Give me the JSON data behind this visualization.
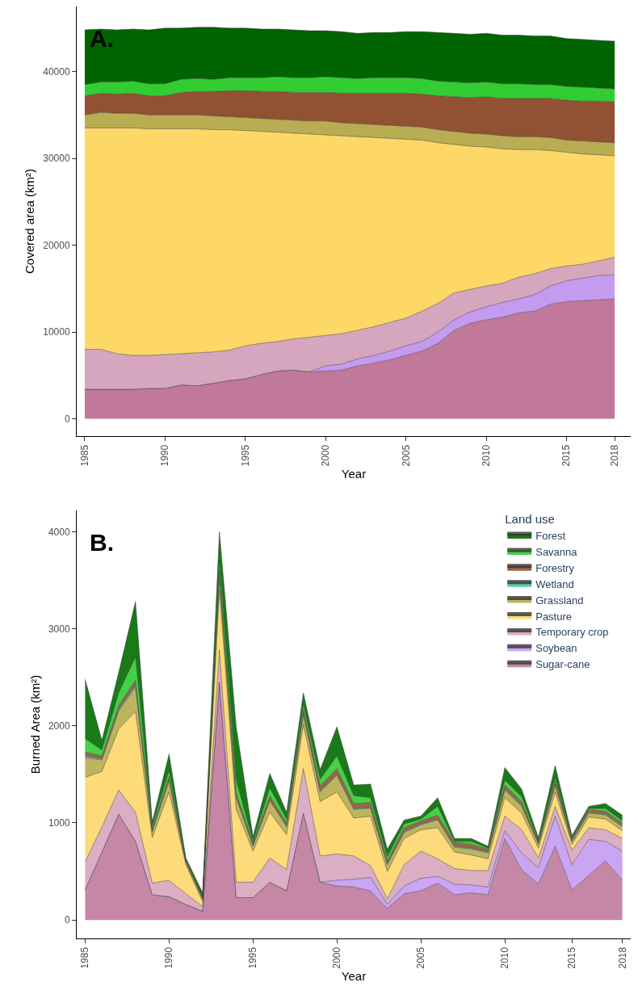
{
  "chart_data": [
    {
      "type": "area",
      "title": "A.",
      "xlabel": "Year",
      "ylabel": "Covered area (km²)",
      "stacked": true,
      "x": [
        1985,
        1986,
        1987,
        1988,
        1989,
        1990,
        1991,
        1992,
        1993,
        1994,
        1995,
        1996,
        1997,
        1998,
        1999,
        2000,
        2001,
        2002,
        2003,
        2004,
        2005,
        2006,
        2007,
        2008,
        2009,
        2010,
        2011,
        2012,
        2013,
        2014,
        2015,
        2016,
        2017,
        2018
      ],
      "xlim": [
        1984.5,
        2019
      ],
      "xticks": [
        1985,
        1990,
        1995,
        2000,
        2005,
        2010,
        2015,
        2018
      ],
      "ylim": [
        -2000,
        47500
      ],
      "yticks": [
        0,
        10000,
        20000,
        30000,
        40000
      ],
      "series": [
        {
          "color": "#c0789b",
          "values": [
            3400,
            3400,
            3400,
            3400,
            3500,
            3500,
            3900,
            3800,
            4100,
            4400,
            4600,
            5100,
            5500,
            5600,
            5400,
            5500,
            5600,
            6100,
            6400,
            6800,
            7300,
            7800,
            8700,
            10200,
            11000,
            11400,
            11700,
            12200,
            12400,
            13200,
            13500,
            13600,
            13700,
            13800
          ]
        },
        {
          "color": "#c39bef",
          "values": [
            0,
            0,
            0,
            0,
            0,
            0,
            0,
            0,
            0,
            0,
            0,
            0,
            0,
            0,
            0,
            600,
            700,
            800,
            900,
            1000,
            1100,
            1100,
            1300,
            1200,
            1300,
            1500,
            1700,
            1600,
            1900,
            2100,
            2400,
            2600,
            2800,
            2800
          ]
        },
        {
          "color": "#d5a6bd",
          "values": [
            4600,
            4600,
            4100,
            3900,
            3800,
            3900,
            3600,
            3800,
            3600,
            3500,
            3800,
            3600,
            3400,
            3600,
            4000,
            3500,
            3500,
            3300,
            3300,
            3300,
            3200,
            3500,
            3300,
            3100,
            2600,
            2400,
            2200,
            2500,
            2400,
            2000,
            1700,
            1600,
            1700,
            2000
          ]
        },
        {
          "color": "#fdd866",
          "values": [
            25500,
            25500,
            26000,
            26200,
            26100,
            26000,
            25900,
            25800,
            25600,
            25400,
            24800,
            24400,
            24100,
            23700,
            23400,
            23100,
            22800,
            22300,
            21800,
            21200,
            20600,
            19700,
            18500,
            17100,
            16500,
            16000,
            15500,
            14700,
            14300,
            13600,
            13100,
            12700,
            12200,
            11700
          ]
        },
        {
          "color": "#b8ad52",
          "values": [
            1500,
            1800,
            1700,
            1700,
            1600,
            1600,
            1600,
            1600,
            1600,
            1500,
            1500,
            1500,
            1500,
            1500,
            1500,
            1600,
            1500,
            1500,
            1500,
            1500,
            1500,
            1500,
            1500,
            1500,
            1500,
            1500,
            1500,
            1500,
            1500,
            1500,
            1400,
            1500,
            1500,
            1500
          ]
        },
        {
          "color": "#935133",
          "values": [
            2200,
            2200,
            2200,
            2300,
            2200,
            2200,
            2600,
            2700,
            2800,
            3000,
            3100,
            3100,
            3200,
            3200,
            3300,
            3300,
            3400,
            3500,
            3600,
            3700,
            3800,
            3800,
            3900,
            4000,
            4100,
            4300,
            4300,
            4400,
            4400,
            4500,
            4600,
            4600,
            4700,
            4700
          ]
        },
        {
          "color": "#32cd32",
          "values": [
            1300,
            1300,
            1400,
            1400,
            1400,
            1400,
            1500,
            1500,
            1400,
            1500,
            1500,
            1600,
            1700,
            1700,
            1700,
            1800,
            1800,
            1700,
            1800,
            1800,
            1800,
            1800,
            1700,
            1700,
            1700,
            1700,
            1700,
            1700,
            1600,
            1600,
            1600,
            1600,
            1500,
            1500
          ]
        },
        {
          "color": "#006400",
          "values": [
            6300,
            6100,
            6000,
            6000,
            6200,
            6400,
            5900,
            5900,
            6000,
            5700,
            5700,
            5600,
            5500,
            5500,
            5400,
            5300,
            5300,
            5200,
            5200,
            5200,
            5300,
            5400,
            5600,
            5600,
            5600,
            5600,
            5600,
            5600,
            5600,
            5600,
            5500,
            5500,
            5500,
            5500
          ]
        }
      ]
    },
    {
      "type": "area",
      "title": "B.",
      "xlabel": "Year",
      "ylabel": "Burned Area (km²)",
      "legend_title": "Land use",
      "stacked": true,
      "legend": "top right",
      "categories": [
        "1985",
        null,
        null,
        null,
        null,
        "1990",
        null,
        null,
        null,
        null,
        "1995",
        null,
        null,
        null,
        null,
        "2000",
        null,
        null,
        null,
        null,
        "2005",
        null,
        null,
        null,
        null,
        "2010",
        null,
        null,
        null,
        "2015",
        null,
        null,
        "2018"
      ],
      "ylim": [
        -190,
        4220
      ],
      "yticks": [
        0,
        1000,
        2000,
        3000,
        4000
      ],
      "series": [
        {
          "name": "Sugar-cane",
          "color": "#c687a7",
          "values": [
            310,
            700,
            1090,
            810,
            260,
            240,
            160,
            90,
            2450,
            230,
            230,
            390,
            300,
            1100,
            390,
            350,
            340,
            300,
            120,
            270,
            300,
            380,
            260,
            280,
            260,
            840,
            520,
            370,
            760,
            310,
            460,
            610,
            410
          ]
        },
        {
          "name": "Soybean",
          "color": "#c9a5f2",
          "values": [
            0,
            0,
            0,
            0,
            0,
            0,
            0,
            0,
            0,
            0,
            0,
            0,
            0,
            0,
            0,
            60,
            80,
            140,
            40,
            80,
            130,
            70,
            110,
            80,
            80,
            80,
            170,
            170,
            310,
            260,
            370,
            200,
            300
          ]
        },
        {
          "name": "Temporary crop",
          "color": "#dbaec3",
          "values": [
            290,
            260,
            250,
            300,
            120,
            170,
            110,
            50,
            330,
            160,
            160,
            250,
            220,
            460,
            270,
            270,
            240,
            120,
            60,
            220,
            280,
            180,
            160,
            150,
            170,
            150,
            240,
            100,
            100,
            150,
            120,
            120,
            130
          ]
        },
        {
          "name": "Pasture",
          "color": "#fddb7a",
          "values": [
            870,
            570,
            630,
            1040,
            470,
            910,
            300,
            50,
            620,
            750,
            320,
            470,
            360,
            450,
            560,
            640,
            390,
            510,
            280,
            270,
            220,
            320,
            170,
            160,
            120,
            190,
            170,
            100,
            150,
            60,
            110,
            110,
            80
          ]
        },
        {
          "name": "Grassland",
          "color": "#bdb55e",
          "values": [
            200,
            120,
            180,
            250,
            60,
            110,
            30,
            30,
            150,
            120,
            50,
            120,
            80,
            110,
            100,
            170,
            90,
            80,
            70,
            60,
            50,
            80,
            50,
            60,
            60,
            80,
            70,
            40,
            70,
            30,
            40,
            40,
            40
          ]
        },
        {
          "name": "Wetland",
          "color": "#5bc8ad",
          "values": [
            20,
            10,
            20,
            20,
            10,
            20,
            0,
            0,
            10,
            10,
            10,
            10,
            10,
            10,
            10,
            10,
            10,
            10,
            10,
            10,
            10,
            10,
            10,
            10,
            10,
            10,
            10,
            10,
            10,
            10,
            10,
            10,
            10
          ]
        },
        {
          "name": "Forestry",
          "color": "#9c6548",
          "values": [
            40,
            30,
            40,
            50,
            20,
            30,
            10,
            10,
            40,
            40,
            20,
            40,
            30,
            40,
            50,
            60,
            50,
            50,
            30,
            40,
            30,
            40,
            40,
            40,
            30,
            40,
            40,
            20,
            40,
            20,
            30,
            30,
            30
          ]
        },
        {
          "name": "Savanna",
          "color": "#44d144",
          "values": [
            140,
            60,
            130,
            240,
            30,
            60,
            10,
            10,
            100,
            130,
            20,
            80,
            40,
            50,
            70,
            130,
            80,
            50,
            40,
            40,
            20,
            90,
            10,
            30,
            10,
            50,
            50,
            10,
            30,
            10,
            10,
            30,
            20
          ]
        },
        {
          "name": "Forest",
          "color": "#1a7a1a",
          "values": [
            610,
            100,
            210,
            570,
            40,
            170,
            20,
            40,
            300,
            550,
            50,
            150,
            70,
            120,
            100,
            300,
            110,
            140,
            80,
            40,
            30,
            90,
            30,
            30,
            20,
            130,
            80,
            30,
            120,
            20,
            20,
            50,
            60
          ]
        }
      ]
    }
  ]
}
